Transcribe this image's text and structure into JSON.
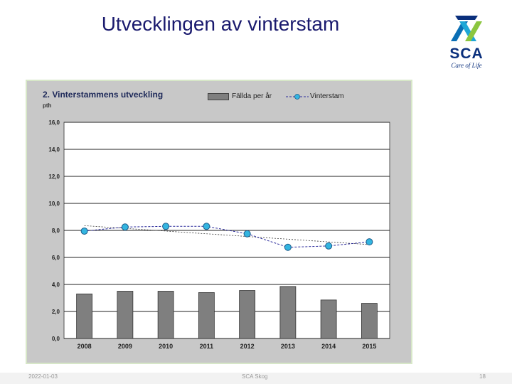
{
  "slide": {
    "title": "Utvecklingen av vinterstam",
    "logo_text": "SCA",
    "logo_tagline": "Care of Life",
    "footer_date": "2022-01-03",
    "footer_center": "SCA Skog",
    "footer_page": "18"
  },
  "colors": {
    "title": "#1a1a6e",
    "bar": "#7f7f7f",
    "line": "#2b2b9b",
    "marker": "#33b5e0",
    "trend": "#3a3a3a",
    "chart_bg": "#c8c8c8",
    "plot_bg": "#ffffff"
  },
  "chart_data": {
    "type": "bar",
    "title": "2. Vinterstammens utveckling",
    "unit": "pth",
    "categories": [
      "2008",
      "2009",
      "2010",
      "2011",
      "2012",
      "2013",
      "2014",
      "2015"
    ],
    "series": [
      {
        "name": "Fällda per år",
        "type": "bar",
        "values": [
          3.3,
          3.5,
          3.5,
          3.4,
          3.55,
          3.85,
          2.85,
          2.6
        ]
      },
      {
        "name": "Vinterstam",
        "type": "line",
        "values": [
          7.95,
          8.25,
          8.3,
          8.3,
          7.75,
          6.75,
          6.85,
          7.15
        ]
      }
    ],
    "trendline": {
      "start": 8.35,
      "end": 6.95
    },
    "ylim": [
      0,
      16
    ],
    "yticks": [
      "0,0",
      "2,0",
      "4,0",
      "6,0",
      "8,0",
      "10,0",
      "12,0",
      "14,0",
      "16,0"
    ],
    "grid": true,
    "legend": "top"
  }
}
